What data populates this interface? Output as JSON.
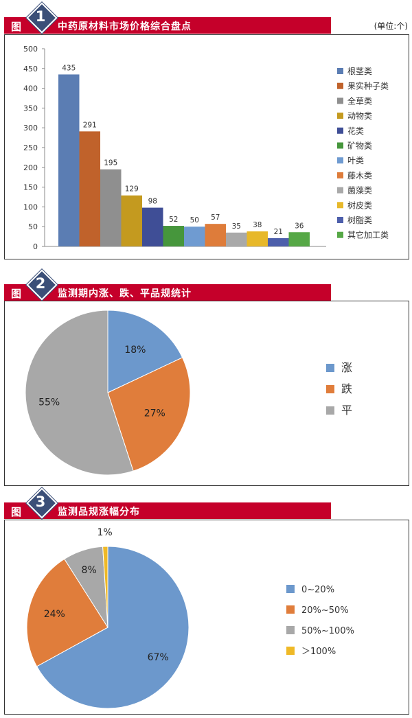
{
  "unit_label": "(单位:个)",
  "figures": [
    {
      "prefix": "图",
      "num": "1",
      "title": "中药原材料市场价格综合盘点"
    },
    {
      "prefix": "图",
      "num": "2",
      "title": "监测期内涨、跌、平品规统计"
    },
    {
      "prefix": "图",
      "num": "3",
      "title": "监测品规涨幅分布"
    }
  ],
  "chart_data": [
    {
      "type": "bar",
      "title": "中药原材料市场价格综合盘点",
      "categories": [
        "根茎类",
        "果实种子类",
        "全草类",
        "动物类",
        "花类",
        "矿物类",
        "叶类",
        "藤木类",
        "菌藻类",
        "树皮类",
        "树脂类",
        "其它加工类"
      ],
      "values": [
        435,
        291,
        195,
        129,
        98,
        52,
        50,
        57,
        35,
        38,
        21,
        36
      ],
      "colors": [
        "#5b7db3",
        "#c0622b",
        "#8f8f8f",
        "#c49a1f",
        "#3f4e96",
        "#46963c",
        "#6f9bd1",
        "#de7c3a",
        "#a9a9a9",
        "#e7b82a",
        "#4d5fab",
        "#56a846"
      ],
      "yticks": [
        0,
        50,
        100,
        150,
        200,
        250,
        300,
        350,
        400,
        450,
        500
      ],
      "ylim": [
        0,
        500
      ],
      "legend_position": "right"
    },
    {
      "type": "pie",
      "title": "监测期内涨、跌、平品规统计",
      "labels": [
        "涨",
        "跌",
        "平"
      ],
      "values": [
        18,
        27,
        55
      ],
      "value_labels": [
        "18%",
        "27%",
        "55%"
      ],
      "colors": [
        "#6c98cc",
        "#e07d3b",
        "#a8a8a8"
      ],
      "legend_position": "right"
    },
    {
      "type": "pie",
      "title": "监测品规涨幅分布",
      "labels": [
        "0~20%",
        "20%~50%",
        "50%~100%",
        "＞100%"
      ],
      "values": [
        67,
        24,
        8,
        1
      ],
      "value_labels": [
        "67%",
        "24%",
        "8%",
        "1%"
      ],
      "colors": [
        "#6c98cc",
        "#e07d3b",
        "#a8a8a8",
        "#efb927"
      ],
      "legend_position": "right"
    }
  ]
}
